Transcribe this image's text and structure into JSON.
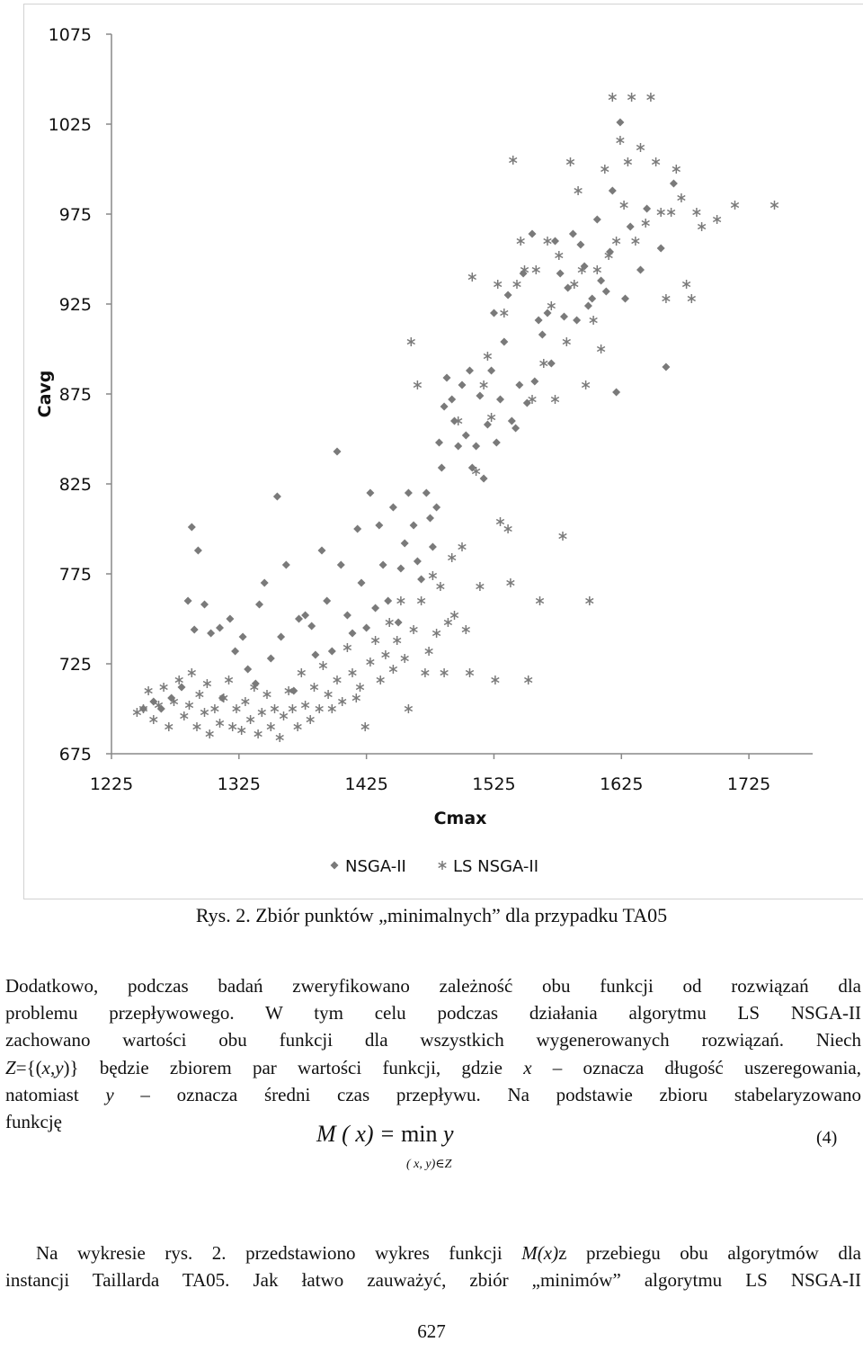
{
  "chart_data": {
    "type": "scatter",
    "title": "",
    "xlabel": "Cmax",
    "ylabel": "Cavg",
    "xlim": [
      1225,
      1775
    ],
    "ylim": [
      675,
      1075
    ],
    "xticks": [
      "1225",
      "1325",
      "1425",
      "1525",
      "1625",
      "1725"
    ],
    "yticks": [
      "1075",
      "1025",
      "975",
      "925",
      "875",
      "825",
      "775",
      "725",
      "675"
    ],
    "grid": "none",
    "legend_position": "bottom",
    "series": [
      {
        "name": "NSGA-II",
        "marker": "diamond",
        "points": [
          [
            1250,
            700
          ],
          [
            1258,
            704
          ],
          [
            1264,
            700
          ],
          [
            1272,
            706
          ],
          [
            1280,
            712
          ],
          [
            1285,
            760
          ],
          [
            1288,
            801
          ],
          [
            1290,
            744
          ],
          [
            1293,
            788
          ],
          [
            1298,
            758
          ],
          [
            1303,
            742
          ],
          [
            1310,
            745
          ],
          [
            1312,
            706
          ],
          [
            1318,
            750
          ],
          [
            1322,
            732
          ],
          [
            1328,
            740
          ],
          [
            1332,
            722
          ],
          [
            1338,
            714
          ],
          [
            1341,
            758
          ],
          [
            1345,
            770
          ],
          [
            1350,
            728
          ],
          [
            1355,
            818
          ],
          [
            1358,
            740
          ],
          [
            1362,
            780
          ],
          [
            1368,
            710
          ],
          [
            1372,
            750
          ],
          [
            1377,
            752
          ],
          [
            1382,
            746
          ],
          [
            1385,
            730
          ],
          [
            1390,
            788
          ],
          [
            1394,
            760
          ],
          [
            1398,
            732
          ],
          [
            1402,
            843
          ],
          [
            1405,
            780
          ],
          [
            1410,
            752
          ],
          [
            1414,
            742
          ],
          [
            1418,
            800
          ],
          [
            1421,
            770
          ],
          [
            1425,
            745
          ],
          [
            1428,
            820
          ],
          [
            1432,
            756
          ],
          [
            1435,
            802
          ],
          [
            1438,
            780
          ],
          [
            1442,
            760
          ],
          [
            1446,
            812
          ],
          [
            1450,
            748
          ],
          [
            1452,
            778
          ],
          [
            1455,
            792
          ],
          [
            1458,
            820
          ],
          [
            1462,
            802
          ],
          [
            1465,
            782
          ],
          [
            1468,
            772
          ],
          [
            1472,
            820
          ],
          [
            1475,
            806
          ],
          [
            1477,
            790
          ],
          [
            1480,
            812
          ],
          [
            1482,
            848
          ],
          [
            1484,
            834
          ],
          [
            1486,
            868
          ],
          [
            1488,
            884
          ],
          [
            1492,
            872
          ],
          [
            1494,
            860
          ],
          [
            1497,
            846
          ],
          [
            1500,
            880
          ],
          [
            1503,
            852
          ],
          [
            1506,
            888
          ],
          [
            1508,
            834
          ],
          [
            1511,
            846
          ],
          [
            1514,
            874
          ],
          [
            1517,
            828
          ],
          [
            1520,
            858
          ],
          [
            1523,
            888
          ],
          [
            1525,
            920
          ],
          [
            1527,
            848
          ],
          [
            1530,
            872
          ],
          [
            1533,
            904
          ],
          [
            1536,
            930
          ],
          [
            1539,
            860
          ],
          [
            1542,
            856
          ],
          [
            1545,
            880
          ],
          [
            1548,
            942
          ],
          [
            1551,
            870
          ],
          [
            1555,
            964
          ],
          [
            1557,
            882
          ],
          [
            1560,
            916
          ],
          [
            1563,
            908
          ],
          [
            1567,
            920
          ],
          [
            1570,
            892
          ],
          [
            1573,
            960
          ],
          [
            1577,
            942
          ],
          [
            1580,
            918
          ],
          [
            1583,
            934
          ],
          [
            1587,
            964
          ],
          [
            1590,
            916
          ],
          [
            1593,
            958
          ],
          [
            1596,
            946
          ],
          [
            1599,
            924
          ],
          [
            1602,
            928
          ],
          [
            1606,
            972
          ],
          [
            1609,
            938
          ],
          [
            1613,
            932
          ],
          [
            1616,
            954
          ],
          [
            1618,
            988
          ],
          [
            1621,
            876
          ],
          [
            1624,
            1026
          ],
          [
            1628,
            928
          ],
          [
            1632,
            968
          ],
          [
            1640,
            944
          ],
          [
            1645,
            978
          ],
          [
            1656,
            956
          ],
          [
            1660,
            890
          ],
          [
            1666,
            992
          ]
        ]
      },
      {
        "name": "LS NSGA-II",
        "marker": "asterisk",
        "points": [
          [
            1245,
            698
          ],
          [
            1250,
            700
          ],
          [
            1254,
            710
          ],
          [
            1258,
            694
          ],
          [
            1262,
            702
          ],
          [
            1266,
            712
          ],
          [
            1270,
            690
          ],
          [
            1274,
            704
          ],
          [
            1278,
            716
          ],
          [
            1282,
            696
          ],
          [
            1286,
            702
          ],
          [
            1288,
            720
          ],
          [
            1292,
            690
          ],
          [
            1294,
            708
          ],
          [
            1298,
            698
          ],
          [
            1300,
            714
          ],
          [
            1302,
            686
          ],
          [
            1306,
            700
          ],
          [
            1310,
            692
          ],
          [
            1313,
            706
          ],
          [
            1317,
            716
          ],
          [
            1320,
            690
          ],
          [
            1323,
            700
          ],
          [
            1327,
            688
          ],
          [
            1330,
            704
          ],
          [
            1334,
            694
          ],
          [
            1337,
            712
          ],
          [
            1340,
            686
          ],
          [
            1343,
            698
          ],
          [
            1347,
            708
          ],
          [
            1350,
            690
          ],
          [
            1353,
            700
          ],
          [
            1357,
            684
          ],
          [
            1360,
            696
          ],
          [
            1364,
            710
          ],
          [
            1367,
            700
          ],
          [
            1371,
            690
          ],
          [
            1374,
            720
          ],
          [
            1377,
            702
          ],
          [
            1381,
            694
          ],
          [
            1384,
            712
          ],
          [
            1388,
            700
          ],
          [
            1391,
            724
          ],
          [
            1395,
            708
          ],
          [
            1398,
            700
          ],
          [
            1402,
            716
          ],
          [
            1406,
            704
          ],
          [
            1410,
            734
          ],
          [
            1414,
            720
          ],
          [
            1417,
            706
          ],
          [
            1420,
            712
          ],
          [
            1424,
            690
          ],
          [
            1428,
            726
          ],
          [
            1432,
            738
          ],
          [
            1436,
            716
          ],
          [
            1440,
            730
          ],
          [
            1443,
            748
          ],
          [
            1446,
            722
          ],
          [
            1449,
            738
          ],
          [
            1452,
            760
          ],
          [
            1455,
            728
          ],
          [
            1458,
            700
          ],
          [
            1460,
            904
          ],
          [
            1462,
            744
          ],
          [
            1465,
            880
          ],
          [
            1468,
            760
          ],
          [
            1471,
            720
          ],
          [
            1474,
            732
          ],
          [
            1477,
            774
          ],
          [
            1480,
            742
          ],
          [
            1483,
            768
          ],
          [
            1486,
            720
          ],
          [
            1489,
            748
          ],
          [
            1492,
            784
          ],
          [
            1494,
            752
          ],
          [
            1497,
            860
          ],
          [
            1500,
            790
          ],
          [
            1503,
            744
          ],
          [
            1506,
            720
          ],
          [
            1508,
            940
          ],
          [
            1511,
            832
          ],
          [
            1514,
            768
          ],
          [
            1517,
            880
          ],
          [
            1520,
            896
          ],
          [
            1523,
            862
          ],
          [
            1526,
            716
          ],
          [
            1528,
            936
          ],
          [
            1530,
            804
          ],
          [
            1533,
            920
          ],
          [
            1536,
            800
          ],
          [
            1538,
            770
          ],
          [
            1540,
            1005
          ],
          [
            1543,
            936
          ],
          [
            1546,
            960
          ],
          [
            1549,
            944
          ],
          [
            1552,
            716
          ],
          [
            1555,
            872
          ],
          [
            1558,
            944
          ],
          [
            1561,
            760
          ],
          [
            1564,
            892
          ],
          [
            1567,
            960
          ],
          [
            1570,
            924
          ],
          [
            1573,
            872
          ],
          [
            1576,
            952
          ],
          [
            1579,
            796
          ],
          [
            1582,
            904
          ],
          [
            1585,
            1004
          ],
          [
            1588,
            936
          ],
          [
            1591,
            988
          ],
          [
            1594,
            944
          ],
          [
            1597,
            880
          ],
          [
            1600,
            760
          ],
          [
            1603,
            916
          ],
          [
            1606,
            944
          ],
          [
            1609,
            900
          ],
          [
            1612,
            1000
          ],
          [
            1615,
            952
          ],
          [
            1618,
            1040
          ],
          [
            1621,
            960
          ],
          [
            1624,
            1016
          ],
          [
            1627,
            980
          ],
          [
            1630,
            1004
          ],
          [
            1633,
            1040
          ],
          [
            1636,
            960
          ],
          [
            1640,
            1012
          ],
          [
            1644,
            970
          ],
          [
            1648,
            1040
          ],
          [
            1652,
            1004
          ],
          [
            1656,
            976
          ],
          [
            1660,
            928
          ],
          [
            1664,
            976
          ],
          [
            1668,
            1000
          ],
          [
            1672,
            984
          ],
          [
            1676,
            936
          ],
          [
            1680,
            928
          ],
          [
            1684,
            976
          ],
          [
            1688,
            968
          ],
          [
            1700,
            972
          ],
          [
            1714,
            980
          ],
          [
            1745,
            980
          ]
        ]
      }
    ]
  },
  "caption": "Rys. 2. Zbiór punktów „minimalnych” dla przypadku TA05",
  "paragraph1": {
    "line1": "Dodatkowo, podczas badań zweryfikowano zależność obu funkcji od rozwiązań dla",
    "line2": "problemu przepływowego. W tym celu podczas działania algorytmu LS NSGA-II",
    "line3": "zachowano wartości obu funkcji dla wszystkich wygenerowanych rozwiązań. Niech",
    "line4_a": "Z",
    "line4_b": "={(",
    "line4_x": "x",
    "line4_c": ",",
    "line4_y": "y",
    "line4_d": ")} będzie zbiorem par wartości funkcji, gdzie ",
    "line4_x2": "x",
    "line4_e": " – oznacza długość uszeregowania,",
    "line5_a": "natomiast ",
    "line5_y": "y",
    "line5_b": " – oznacza średni czas przepływu. Na podstawie zbioru stabelaryzowano",
    "line6": "funkcję"
  },
  "formula": {
    "lhs": "M ( x) =",
    "op": "min",
    "rhs": "y",
    "subscript": "( x, y)∈Z",
    "number": "(4)"
  },
  "paragraph2": {
    "line1_a": "Na wykresie rys. 2. przedstawiono wykres funkcji ",
    "line1_mx": "M(x)",
    "line1_b": "z przebiegu obu algorytmów dla",
    "line2": "instancji Taillarda TA05. Jak łatwo zauważyć, zbiór „minimów” algorytmu LS NSGA-II"
  },
  "page_number": "627",
  "colors": {
    "marker": "#808080",
    "axis": "#888888",
    "text": "#111111"
  }
}
